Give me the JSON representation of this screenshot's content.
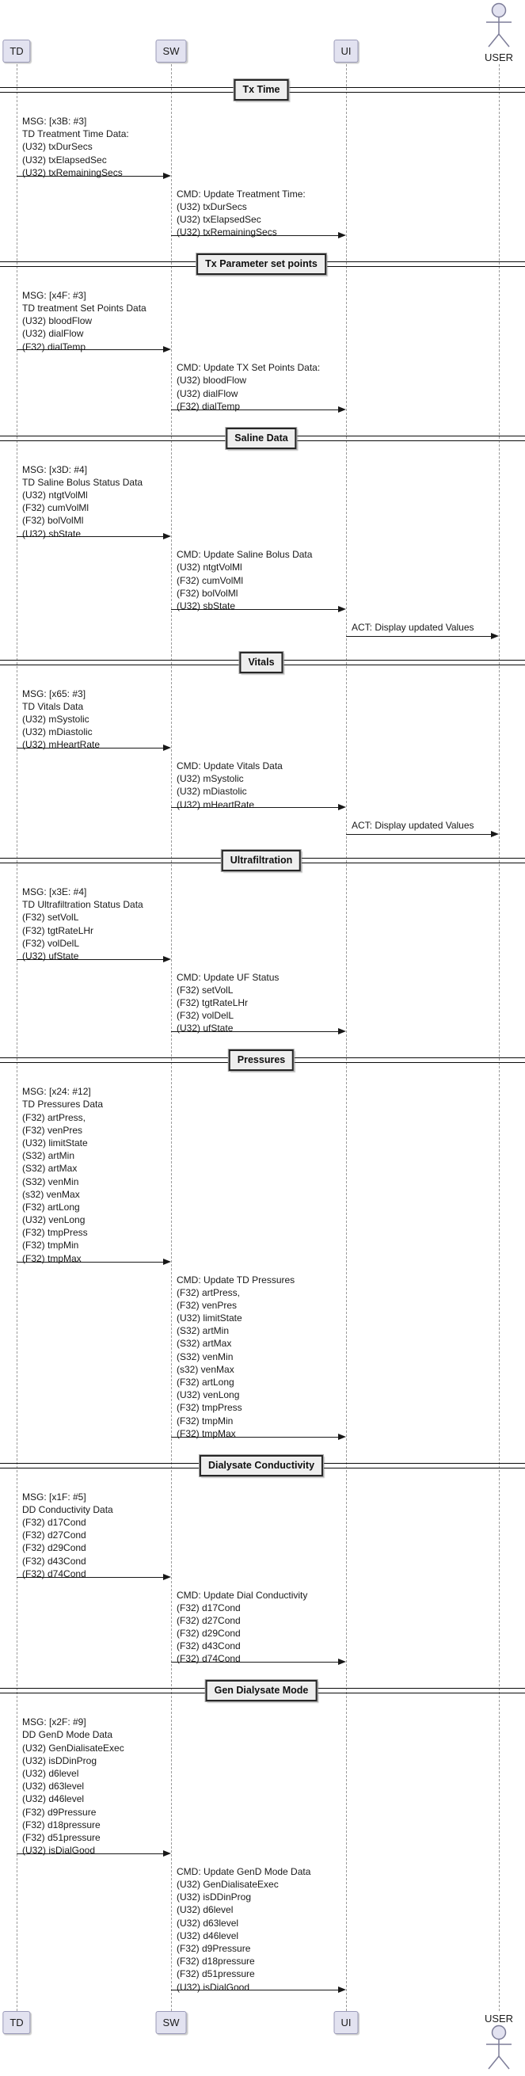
{
  "diagram": {
    "participants": [
      {
        "id": "TD",
        "label": "TD",
        "type": "box"
      },
      {
        "id": "SW",
        "label": "SW",
        "type": "box"
      },
      {
        "id": "UI",
        "label": "UI",
        "type": "box"
      },
      {
        "id": "USER",
        "label": "USER",
        "type": "actor"
      }
    ],
    "sections": [
      {
        "title": "Tx Time",
        "messages": [
          {
            "from": "TD",
            "to": "SW",
            "lines": [
              "MSG: [x3B: #3]",
              "TD Treatment Time Data:",
              "(U32) txDurSecs",
              "(U32) txElapsedSec",
              "(U32) txRemainingSecs"
            ]
          },
          {
            "from": "SW",
            "to": "UI",
            "lines": [
              "CMD: Update Treatment Time:",
              "(U32) txDurSecs",
              "(U32) txElapsedSec",
              "(U32) txRemainingSecs"
            ]
          }
        ]
      },
      {
        "title": "Tx Parameter set points",
        "messages": [
          {
            "from": "TD",
            "to": "SW",
            "lines": [
              "MSG: [x4F: #3]",
              "TD treatment Set Points Data",
              "(U32) bloodFlow",
              "(U32) dialFlow",
              "(F32) dialTemp"
            ]
          },
          {
            "from": "SW",
            "to": "UI",
            "lines": [
              "CMD: Update TX Set Points Data:",
              "(U32) bloodFlow",
              "(U32) dialFlow",
              "(F32) dialTemp"
            ]
          }
        ]
      },
      {
        "title": "Saline Data",
        "messages": [
          {
            "from": "TD",
            "to": "SW",
            "lines": [
              "MSG: [x3D: #4]",
              "TD Saline Bolus Status Data",
              "(U32) ntgtVolMl",
              "(F32) cumVolMl",
              "(F32) bolVolMl",
              "(U32) sbState"
            ]
          },
          {
            "from": "SW",
            "to": "UI",
            "lines": [
              "CMD: Update Saline Bolus Data",
              "(U32) ntgtVolMl",
              "(F32) cumVolMl",
              "(F32) bolVolMl",
              "(U32) sbState"
            ]
          },
          {
            "from": "UI",
            "to": "USER",
            "lines": [
              "ACT: Display updated Values"
            ]
          }
        ]
      },
      {
        "title": "Vitals",
        "messages": [
          {
            "from": "TD",
            "to": "SW",
            "lines": [
              "MSG: [x65: #3]",
              "TD Vitals Data",
              "(U32) mSystolic",
              "(U32) mDiastolic",
              "(U32) mHeartRate"
            ]
          },
          {
            "from": "SW",
            "to": "UI",
            "lines": [
              "CMD: Update Vitals Data",
              "(U32) mSystolic",
              "(U32) mDiastolic",
              "(U32) mHeartRate"
            ]
          },
          {
            "from": "UI",
            "to": "USER",
            "lines": [
              "ACT: Display updated Values"
            ]
          }
        ]
      },
      {
        "title": "Ultrafiltration",
        "messages": [
          {
            "from": "TD",
            "to": "SW",
            "lines": [
              "MSG: [x3E: #4]",
              "TD Ultrafiltration Status Data",
              "(F32) setVolL",
              "(F32) tgtRateLHr",
              "(F32) volDelL",
              "(U32) ufState"
            ]
          },
          {
            "from": "SW",
            "to": "UI",
            "lines": [
              "CMD: Update UF Status",
              "(F32) setVolL",
              "(F32) tgtRateLHr",
              "(F32) volDelL",
              "(U32) ufState"
            ]
          }
        ]
      },
      {
        "title": "Pressures",
        "messages": [
          {
            "from": "TD",
            "to": "SW",
            "lines": [
              "MSG: [x24: #12]",
              "TD Pressures Data",
              "(F32) artPress,",
              "(F32) venPres",
              "(U32) limitState",
              "(S32) artMin",
              "(S32) artMax",
              "(S32) venMin",
              "(s32) venMax",
              "(F32) artLong",
              "(U32) venLong",
              "(F32) tmpPress",
              "(F32) tmpMin",
              "(F32) tmpMax"
            ]
          },
          {
            "from": "SW",
            "to": "UI",
            "lines": [
              "CMD: Update TD Pressures",
              "(F32) artPress,",
              "(F32) venPres",
              "(U32) limitState",
              "(S32) artMin",
              "(S32) artMax",
              "(S32) venMin",
              "(s32) venMax",
              "(F32) artLong",
              "(U32) venLong",
              "(F32) tmpPress",
              "(F32) tmpMin",
              "(F32) tmpMax"
            ]
          }
        ]
      },
      {
        "title": "Dialysate Conductivity",
        "messages": [
          {
            "from": "TD",
            "to": "SW",
            "lines": [
              "MSG: [x1F: #5]",
              "DD Conductivity Data",
              "(F32) d17Cond",
              "(F32) d27Cond",
              "(F32) d29Cond",
              "(F32) d43Cond",
              "(F32) d74Cond"
            ]
          },
          {
            "from": "SW",
            "to": "UI",
            "lines": [
              "CMD: Update Dial Conductivity",
              "(F32) d17Cond",
              "(F32) d27Cond",
              "(F32) d29Cond",
              "(F32) d43Cond",
              "(F32) d74Cond"
            ]
          }
        ]
      },
      {
        "title": "Gen Dialysate Mode",
        "messages": [
          {
            "from": "TD",
            "to": "SW",
            "lines": [
              "MSG: [x2F: #9]",
              "DD GenD Mode Data",
              "(U32) GenDialisateExec",
              "(U32) isDDinProg",
              "(U32) d6level",
              "(U32) d63level",
              "(U32) d46level",
              "(F32) d9Pressure",
              "(F32) d18pressure",
              "(F32) d51pressure",
              "(U32) isDialGood"
            ]
          },
          {
            "from": "SW",
            "to": "UI",
            "lines": [
              "CMD: Update GenD Mode Data",
              "(U32) GenDialisateExec",
              "(U32) isDDinProg",
              "(U32) d6level",
              "(U32) d63level",
              "(U32) d46level",
              "(F32) d9Pressure",
              "(F32) d18pressure",
              "(F32) d51pressure",
              "(U32) isDialGood"
            ]
          }
        ]
      }
    ],
    "colors": {
      "participant_fill": "#E2E2F0",
      "participant_border": "#9a9ab8",
      "divider_fill": "#EEEEEE",
      "divider_border": "#262626",
      "arrow": "#181818",
      "lifeline": "#9a9a9a",
      "text": "#191919"
    }
  }
}
